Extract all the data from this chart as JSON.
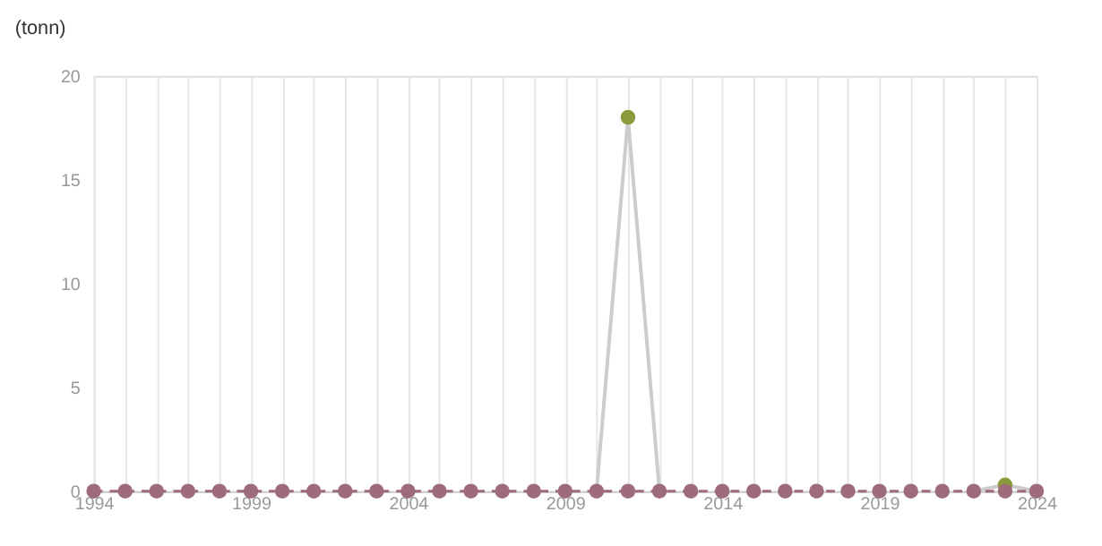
{
  "chart_data": {
    "type": "line",
    "ylabel": "(tonn)",
    "x": [
      1994,
      1995,
      1996,
      1997,
      1998,
      1999,
      2000,
      2001,
      2002,
      2003,
      2004,
      2005,
      2006,
      2007,
      2008,
      2009,
      2010,
      2011,
      2012,
      2013,
      2014,
      2015,
      2016,
      2017,
      2018,
      2019,
      2020,
      2021,
      2022,
      2023,
      2024
    ],
    "series": [
      {
        "type": "line",
        "color": "#cccccc",
        "marker": "none",
        "line_style": "solid",
        "values": [
          null,
          null,
          null,
          null,
          null,
          null,
          null,
          null,
          null,
          null,
          null,
          null,
          null,
          null,
          null,
          null,
          0,
          18,
          0,
          null,
          null,
          null,
          null,
          null,
          null,
          null,
          null,
          null,
          0,
          0.3,
          0
        ]
      },
      {
        "type": "scatter",
        "color": "#8a9a3c",
        "marker": "circle",
        "x": [
          2011,
          2023
        ],
        "values": [
          18,
          0.3
        ]
      },
      {
        "color": "#9e6b7b",
        "marker": "circle",
        "line_style": "dashed",
        "values": [
          0,
          0,
          0,
          0,
          0,
          0,
          0,
          0,
          0,
          0,
          0,
          0,
          0,
          0,
          0,
          0,
          0,
          0,
          0,
          0,
          0,
          0,
          0,
          0,
          0,
          0,
          0,
          0,
          0,
          0,
          0
        ]
      }
    ],
    "xlim": [
      1994,
      2024
    ],
    "xticks": [
      1994,
      {
        "value": 1995,
        "label": null
      },
      {
        "value": 1996,
        "label": null
      },
      {
        "value": 1997,
        "label": null
      },
      {
        "value": 1998,
        "label": null
      },
      1999,
      {
        "value": 2000,
        "label": null
      },
      {
        "value": 2001,
        "label": null
      },
      {
        "value": 2002,
        "label": null
      },
      {
        "value": 2003,
        "label": null
      },
      2004,
      {
        "value": 2005,
        "label": null
      },
      {
        "value": 2006,
        "label": null
      },
      {
        "value": 2007,
        "label": null
      },
      {
        "value": 2008,
        "label": null
      },
      2009,
      {
        "value": 2010,
        "label": null
      },
      {
        "value": 2011,
        "label": null
      },
      {
        "value": 2012,
        "label": null
      },
      {
        "value": 2013,
        "label": null
      },
      2014,
      {
        "value": 2015,
        "label": null
      },
      {
        "value": 2016,
        "label": null
      },
      {
        "value": 2017,
        "label": null
      },
      {
        "value": 2018,
        "label": null
      },
      2019,
      {
        "value": 2020,
        "label": null
      },
      {
        "value": 2021,
        "label": null
      },
      {
        "value": 2022,
        "label": null
      },
      {
        "value": 2023,
        "label": null
      },
      2024
    ],
    "ylim": [
      0,
      20
    ],
    "yticks": [
      0,
      5,
      10,
      15,
      20
    ],
    "grid": "x"
  }
}
